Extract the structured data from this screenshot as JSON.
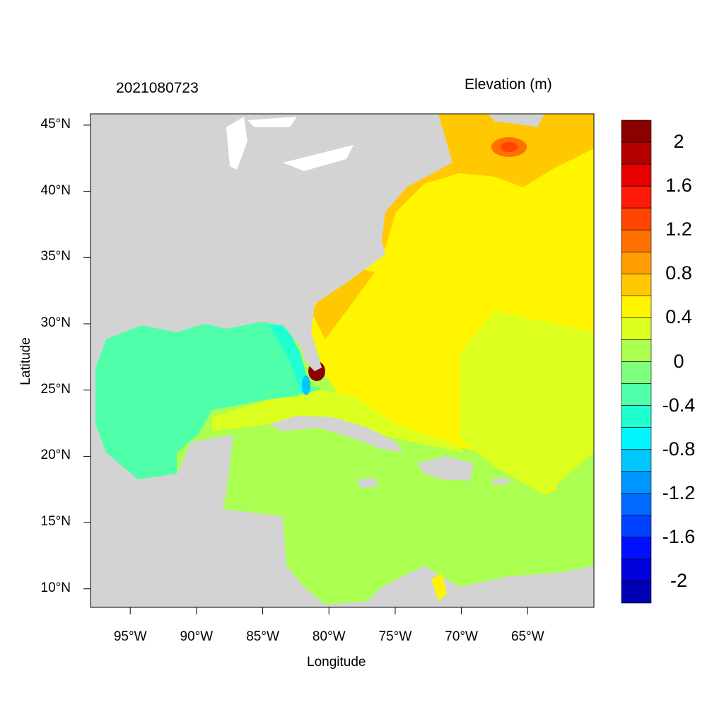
{
  "title_left": "2021080723",
  "title_right": "Elevation (m)",
  "x_axis": {
    "label": "Longitude",
    "range": [
      -98,
      -60
    ],
    "ticks": [
      {
        "value": -95,
        "label": "95°W"
      },
      {
        "value": -90,
        "label": "90°W"
      },
      {
        "value": -85,
        "label": "85°W"
      },
      {
        "value": -80,
        "label": "80°W"
      },
      {
        "value": -75,
        "label": "75°W"
      },
      {
        "value": -70,
        "label": "70°W"
      },
      {
        "value": -65,
        "label": "65°W"
      }
    ]
  },
  "y_axis": {
    "label": "Latitude",
    "range": [
      8.6,
      45.85
    ],
    "ticks": [
      {
        "value": 45,
        "label": "45°N"
      },
      {
        "value": 40,
        "label": "40°N"
      },
      {
        "value": 35,
        "label": "35°N"
      },
      {
        "value": 30,
        "label": "30°N"
      },
      {
        "value": 25,
        "label": "25°N"
      },
      {
        "value": 20,
        "label": "20°N"
      },
      {
        "value": 15,
        "label": "15°N"
      },
      {
        "value": 10,
        "label": "10°N"
      }
    ]
  },
  "colorbar": {
    "colors_top_to_bottom": [
      "#8b0000",
      "#b40000",
      "#e60000",
      "#ff1a0a",
      "#ff4500",
      "#ff7000",
      "#ff9c00",
      "#ffc800",
      "#fff500",
      "#dcff20",
      "#aaff50",
      "#7dff7d",
      "#50ffaa",
      "#20ffd2",
      "#00f5ff",
      "#00c8ff",
      "#0096ff",
      "#0069ff",
      "#0040ff",
      "#0010ff",
      "#0000dc",
      "#0000b4"
    ],
    "labels": [
      "2",
      "1.6",
      "1.2",
      "0.8",
      "0.4",
      "0",
      "-0.4",
      "-0.8",
      "-1.2",
      "-1.6",
      "-2"
    ]
  },
  "colors": {
    "land": "#d3d3d3",
    "gulf": "#50ffaa",
    "caribbean": "#aaff50",
    "atlantic": "#fff500",
    "atlantic_east": "#dcff20",
    "shelf": "#ffc800",
    "lakes": "#ffffff"
  }
}
